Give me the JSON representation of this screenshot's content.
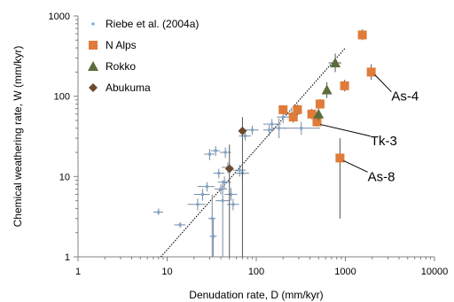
{
  "chart_data": {
    "type": "scatter",
    "xlabel": "Denudation rate, D (mm/kyr)",
    "ylabel": "Chemical weathering rate, W (mm/kyr)",
    "xscale": "log",
    "yscale": "log",
    "xlim": [
      1,
      10000
    ],
    "ylim": [
      1,
      1000
    ],
    "xticks": [
      "1",
      "10",
      "100",
      "1000",
      "10000"
    ],
    "yticks": [
      "1",
      "10",
      "100",
      "1000"
    ],
    "grid": false,
    "legend_position": "top-left",
    "series": [
      {
        "name": "Riebe et al. (2004a)",
        "marker": "cross",
        "color": "#7aa6cf",
        "points": [
          {
            "x": 8,
            "y": 3.6,
            "xerr": [
              7,
              9
            ],
            "yerr": [
              3.3,
              4
            ]
          },
          {
            "x": 14,
            "y": 2.5,
            "xerr": [
              12,
              16
            ],
            "yerr": [
              2.3,
              2.7
            ]
          },
          {
            "x": 22,
            "y": 4.5,
            "xerr": [
              17,
              27
            ],
            "yerr": [
              3.8,
              5.3
            ]
          },
          {
            "x": 25,
            "y": 6,
            "xerr": [
              20,
              30
            ],
            "yerr": [
              5,
              7
            ]
          },
          {
            "x": 28,
            "y": 7.5,
            "xerr": [
              22,
              34
            ],
            "yerr": [
              6.5,
              8.5
            ]
          },
          {
            "x": 30,
            "y": 19,
            "xerr": [
              26,
              34
            ],
            "yerr": [
              16,
              22
            ]
          },
          {
            "x": 32,
            "y": 3,
            "xerr": [
              29,
              35
            ],
            "yerr": [
              1,
              6
            ]
          },
          {
            "x": 33,
            "y": 1.8,
            "xerr": [
              30,
              36
            ],
            "yerr": [
              1,
              3
            ]
          },
          {
            "x": 35,
            "y": 21,
            "xerr": [
              31,
              39
            ],
            "yerr": [
              18,
              24
            ]
          },
          {
            "x": 38,
            "y": 11,
            "xerr": [
              33,
              44
            ],
            "yerr": [
              9.5,
              12.5
            ]
          },
          {
            "x": 40,
            "y": 7,
            "xerr": [
              34,
              47
            ],
            "yerr": [
              6,
              8
            ]
          },
          {
            "x": 42,
            "y": 5,
            "xerr": [
              35,
              50
            ],
            "yerr": [
              1,
              9
            ]
          },
          {
            "x": 44,
            "y": 8.5,
            "xerr": [
              37,
              52
            ],
            "yerr": [
              7,
              10
            ]
          },
          {
            "x": 45,
            "y": 20,
            "xerr": [
              39,
              52
            ],
            "yerr": [
              17,
              23
            ]
          },
          {
            "x": 48,
            "y": 13,
            "xerr": [
              41,
              55
            ],
            "yerr": [
              11,
              15
            ]
          },
          {
            "x": 52,
            "y": 6,
            "xerr": [
              44,
              61
            ],
            "yerr": [
              5,
              7.2
            ]
          },
          {
            "x": 55,
            "y": 4.5,
            "xerr": [
              47,
              64
            ],
            "yerr": [
              3.8,
              5.3
            ]
          },
          {
            "x": 65,
            "y": 12,
            "xerr": [
              55,
              76
            ],
            "yerr": [
              10,
              14
            ]
          },
          {
            "x": 70,
            "y": 11,
            "xerr": [
              59,
              83
            ],
            "yerr": [
              9,
              13
            ]
          },
          {
            "x": 75,
            "y": 32,
            "xerr": [
              64,
              87
            ],
            "yerr": [
              28,
              36
            ]
          },
          {
            "x": 90,
            "y": 38,
            "xerr": [
              76,
              106
            ],
            "yerr": [
              33,
              43
            ]
          },
          {
            "x": 140,
            "y": 38,
            "xerr": [
              120,
              160
            ],
            "yerr": [
              32,
              44
            ]
          },
          {
            "x": 150,
            "y": 45,
            "xerr": [
              120,
              190
            ],
            "yerr": [
              38,
              52
            ]
          },
          {
            "x": 180,
            "y": 40,
            "xerr": [
              150,
              215
            ],
            "yerr": [
              30,
              53
            ]
          },
          {
            "x": 200,
            "y": 55,
            "xerr": [
              170,
              240
            ],
            "yerr": [
              46,
              65
            ]
          },
          {
            "x": 250,
            "y": 60,
            "xerr": [
              200,
              310
            ],
            "yerr": [
              50,
              72
            ]
          },
          {
            "x": 320,
            "y": 40,
            "xerr": [
              200,
              520
            ],
            "yerr": [
              33,
              48
            ]
          }
        ]
      },
      {
        "name": "N Alps",
        "marker": "square",
        "color": "#e07b39",
        "points": [
          {
            "x": 200,
            "y": 68,
            "xerr": null,
            "yerr": [
              60,
              77
            ]
          },
          {
            "x": 260,
            "y": 55,
            "xerr": null,
            "yerr": [
              47,
              64
            ]
          },
          {
            "x": 290,
            "y": 68,
            "xerr": null,
            "yerr": [
              58,
              79
            ]
          },
          {
            "x": 420,
            "y": 60,
            "xerr": null,
            "yerr": [
              52,
              70
            ]
          },
          {
            "x": 480,
            "y": 48,
            "xerr": null,
            "yerr": [
              42,
              55
            ]
          },
          {
            "x": 520,
            "y": 80,
            "xerr": null,
            "yerr": [
              70,
              92
            ]
          },
          {
            "x": 870,
            "y": 17,
            "xerr": null,
            "yerr": [
              3,
              30
            ]
          },
          {
            "x": 980,
            "y": 135,
            "xerr": null,
            "yerr": [
              115,
              160
            ]
          },
          {
            "x": 1550,
            "y": 580,
            "xerr": null,
            "yerr": [
              500,
              680
            ]
          },
          {
            "x": 1950,
            "y": 200,
            "xerr": null,
            "yerr": [
              160,
              250
            ]
          }
        ]
      },
      {
        "name": "Rokko",
        "marker": "triangle",
        "color": "#5a6e3a",
        "points": [
          {
            "x": 500,
            "y": 60,
            "xerr": null,
            "yerr": [
              50,
              70
            ]
          },
          {
            "x": 620,
            "y": 120,
            "xerr": null,
            "yerr": [
              95,
              150
            ]
          },
          {
            "x": 770,
            "y": 260,
            "xerr": [
              650,
              900
            ],
            "yerr": [
              200,
              340
            ]
          }
        ]
      },
      {
        "name": "Abukuma",
        "marker": "diamond",
        "color": "#6b4a2f",
        "points": [
          {
            "x": 50,
            "y": 12.5,
            "xerr": null,
            "yerr": [
              1,
              25
            ]
          },
          {
            "x": 70,
            "y": 37,
            "xerr": null,
            "yerr": [
              1,
              55
            ]
          }
        ]
      }
    ],
    "fit_line": {
      "style": "dotted",
      "color": "#000000",
      "x": [
        8.5,
        1000
      ],
      "y": [
        1,
        400
      ]
    },
    "annotations": [
      {
        "text": "As-4",
        "x": 3600,
        "y": 100,
        "point": {
          "x": 1950,
          "y": 200
        }
      },
      {
        "text": "Tk-3",
        "x": 2100,
        "y": 28,
        "point": {
          "x": 480,
          "y": 48
        }
      },
      {
        "text": "As-8",
        "x": 1950,
        "y": 10,
        "point": {
          "x": 870,
          "y": 17
        }
      }
    ]
  }
}
